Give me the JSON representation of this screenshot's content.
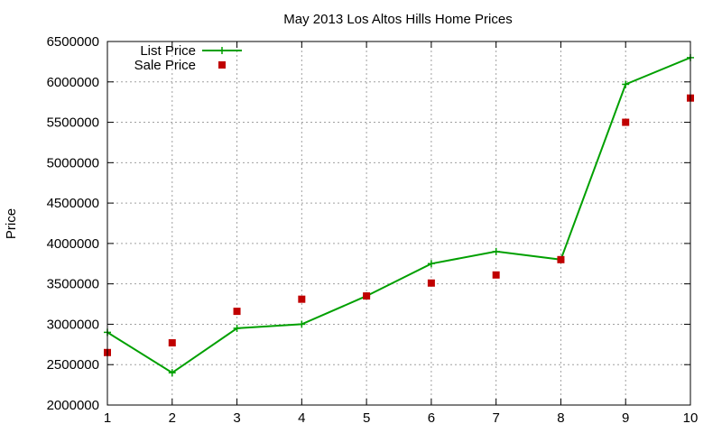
{
  "chart_data": {
    "type": "line",
    "title": "May 2013 Los Altos Hills Home Prices",
    "xlabel": "",
    "ylabel": "Price",
    "xlim": [
      1,
      10
    ],
    "ylim": [
      2000000,
      6500000
    ],
    "x_ticks": [
      1,
      2,
      3,
      4,
      5,
      6,
      7,
      8,
      9,
      10
    ],
    "y_ticks": [
      2000000,
      2500000,
      3000000,
      3500000,
      4000000,
      4500000,
      5000000,
      5500000,
      6000000,
      6500000
    ],
    "grid": true,
    "legend_position": "top-left",
    "series": [
      {
        "name": "List Price",
        "style": "linespoints",
        "color": "#00a000",
        "x": [
          1,
          2,
          3,
          4,
          5,
          6,
          7,
          8,
          9,
          10
        ],
        "y": [
          2900000,
          2400000,
          2950000,
          3000000,
          3350000,
          3750000,
          3900000,
          3800000,
          5970000,
          6300000
        ]
      },
      {
        "name": "Sale Price",
        "style": "points",
        "color": "#c00000",
        "x": [
          1,
          2,
          3,
          4,
          5,
          6,
          7,
          8,
          9,
          10
        ],
        "y": [
          2650000,
          2770000,
          3160000,
          3310000,
          3350000,
          3510000,
          3610000,
          3800000,
          5500000,
          5800000
        ]
      }
    ]
  }
}
